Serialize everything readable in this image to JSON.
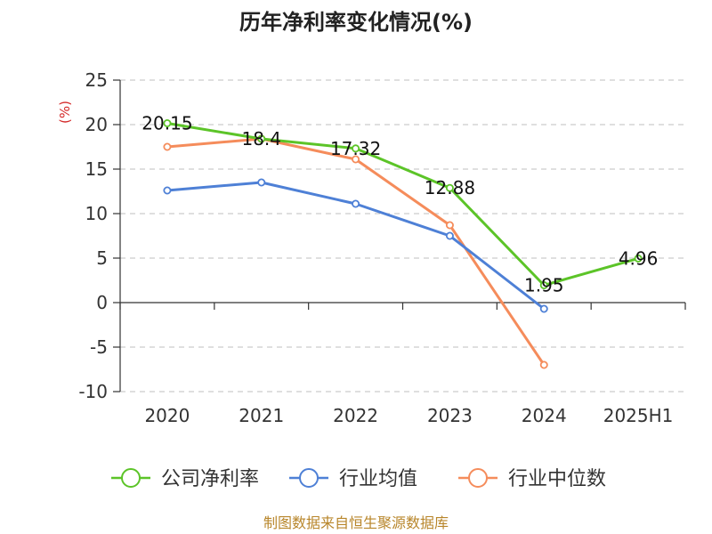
{
  "chart_data": {
    "type": "line",
    "title": "历年净利率变化情况(%)",
    "y_unit": "(%)",
    "categories": [
      "2020",
      "2021",
      "2022",
      "2023",
      "2024",
      "2025H1"
    ],
    "ylim": [
      -10,
      25
    ],
    "yticks": [
      "25",
      "20",
      "15",
      "10",
      "5",
      "0",
      "-5",
      "-10"
    ],
    "grid": true,
    "legend_position": "bottom",
    "series": [
      {
        "name": "公司净利率",
        "color": "#5cc428",
        "values": [
          20.15,
          18.4,
          17.32,
          12.88,
          1.95,
          4.96
        ],
        "labels": [
          "20.15",
          "18.4",
          "17.32",
          "12.88",
          "1.95",
          "4.96"
        ]
      },
      {
        "name": "行业均值",
        "color": "#4e80d6",
        "values": [
          12.6,
          13.5,
          11.1,
          7.5,
          -0.7,
          null
        ]
      },
      {
        "name": "行业中位数",
        "color": "#f58c5b",
        "values": [
          17.5,
          18.4,
          16.1,
          8.7,
          -7.0,
          null
        ]
      }
    ]
  },
  "source": "制图数据来自恒生聚源数据库"
}
